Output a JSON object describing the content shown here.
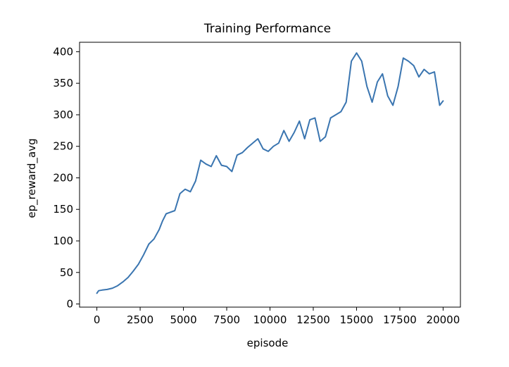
{
  "chart_data": {
    "type": "line",
    "title": "Training Performance",
    "xlabel": "episode",
    "ylabel": "ep_reward_avg",
    "xlim": [
      -1000,
      21000
    ],
    "ylim": [
      -5,
      415
    ],
    "xticks": [
      0,
      2500,
      5000,
      7500,
      10000,
      12500,
      15000,
      17500,
      20000
    ],
    "yticks": [
      0,
      50,
      100,
      150,
      200,
      250,
      300,
      350,
      400
    ],
    "grid": false,
    "legend": "none",
    "series": [
      {
        "color": "#3a75b0",
        "points": [
          [
            0,
            17
          ],
          [
            100,
            21
          ],
          [
            300,
            22
          ],
          [
            600,
            23
          ],
          [
            900,
            25
          ],
          [
            1200,
            29
          ],
          [
            1500,
            35
          ],
          [
            1800,
            42
          ],
          [
            2100,
            52
          ],
          [
            2400,
            63
          ],
          [
            2700,
            78
          ],
          [
            3000,
            95
          ],
          [
            3300,
            103
          ],
          [
            3600,
            118
          ],
          [
            3800,
            132
          ],
          [
            4000,
            143
          ],
          [
            4200,
            145
          ],
          [
            4500,
            148
          ],
          [
            4800,
            175
          ],
          [
            5100,
            182
          ],
          [
            5400,
            178
          ],
          [
            5700,
            195
          ],
          [
            6000,
            228
          ],
          [
            6300,
            222
          ],
          [
            6600,
            218
          ],
          [
            6900,
            235
          ],
          [
            7200,
            220
          ],
          [
            7500,
            218
          ],
          [
            7800,
            210
          ],
          [
            8100,
            236
          ],
          [
            8400,
            240
          ],
          [
            8700,
            248
          ],
          [
            9000,
            255
          ],
          [
            9300,
            262
          ],
          [
            9600,
            246
          ],
          [
            9900,
            242
          ],
          [
            10200,
            250
          ],
          [
            10500,
            255
          ],
          [
            10800,
            275
          ],
          [
            11100,
            258
          ],
          [
            11400,
            272
          ],
          [
            11700,
            290
          ],
          [
            12000,
            262
          ],
          [
            12300,
            292
          ],
          [
            12600,
            295
          ],
          [
            12900,
            258
          ],
          [
            13200,
            265
          ],
          [
            13500,
            295
          ],
          [
            13800,
            300
          ],
          [
            14100,
            305
          ],
          [
            14400,
            320
          ],
          [
            14700,
            385
          ],
          [
            15000,
            398
          ],
          [
            15300,
            385
          ],
          [
            15600,
            345
          ],
          [
            15900,
            320
          ],
          [
            16200,
            352
          ],
          [
            16500,
            365
          ],
          [
            16800,
            330
          ],
          [
            17100,
            315
          ],
          [
            17400,
            345
          ],
          [
            17700,
            390
          ],
          [
            18000,
            385
          ],
          [
            18300,
            378
          ],
          [
            18600,
            360
          ],
          [
            18900,
            372
          ],
          [
            19200,
            365
          ],
          [
            19500,
            368
          ],
          [
            19800,
            315
          ],
          [
            20000,
            322
          ]
        ]
      }
    ]
  }
}
